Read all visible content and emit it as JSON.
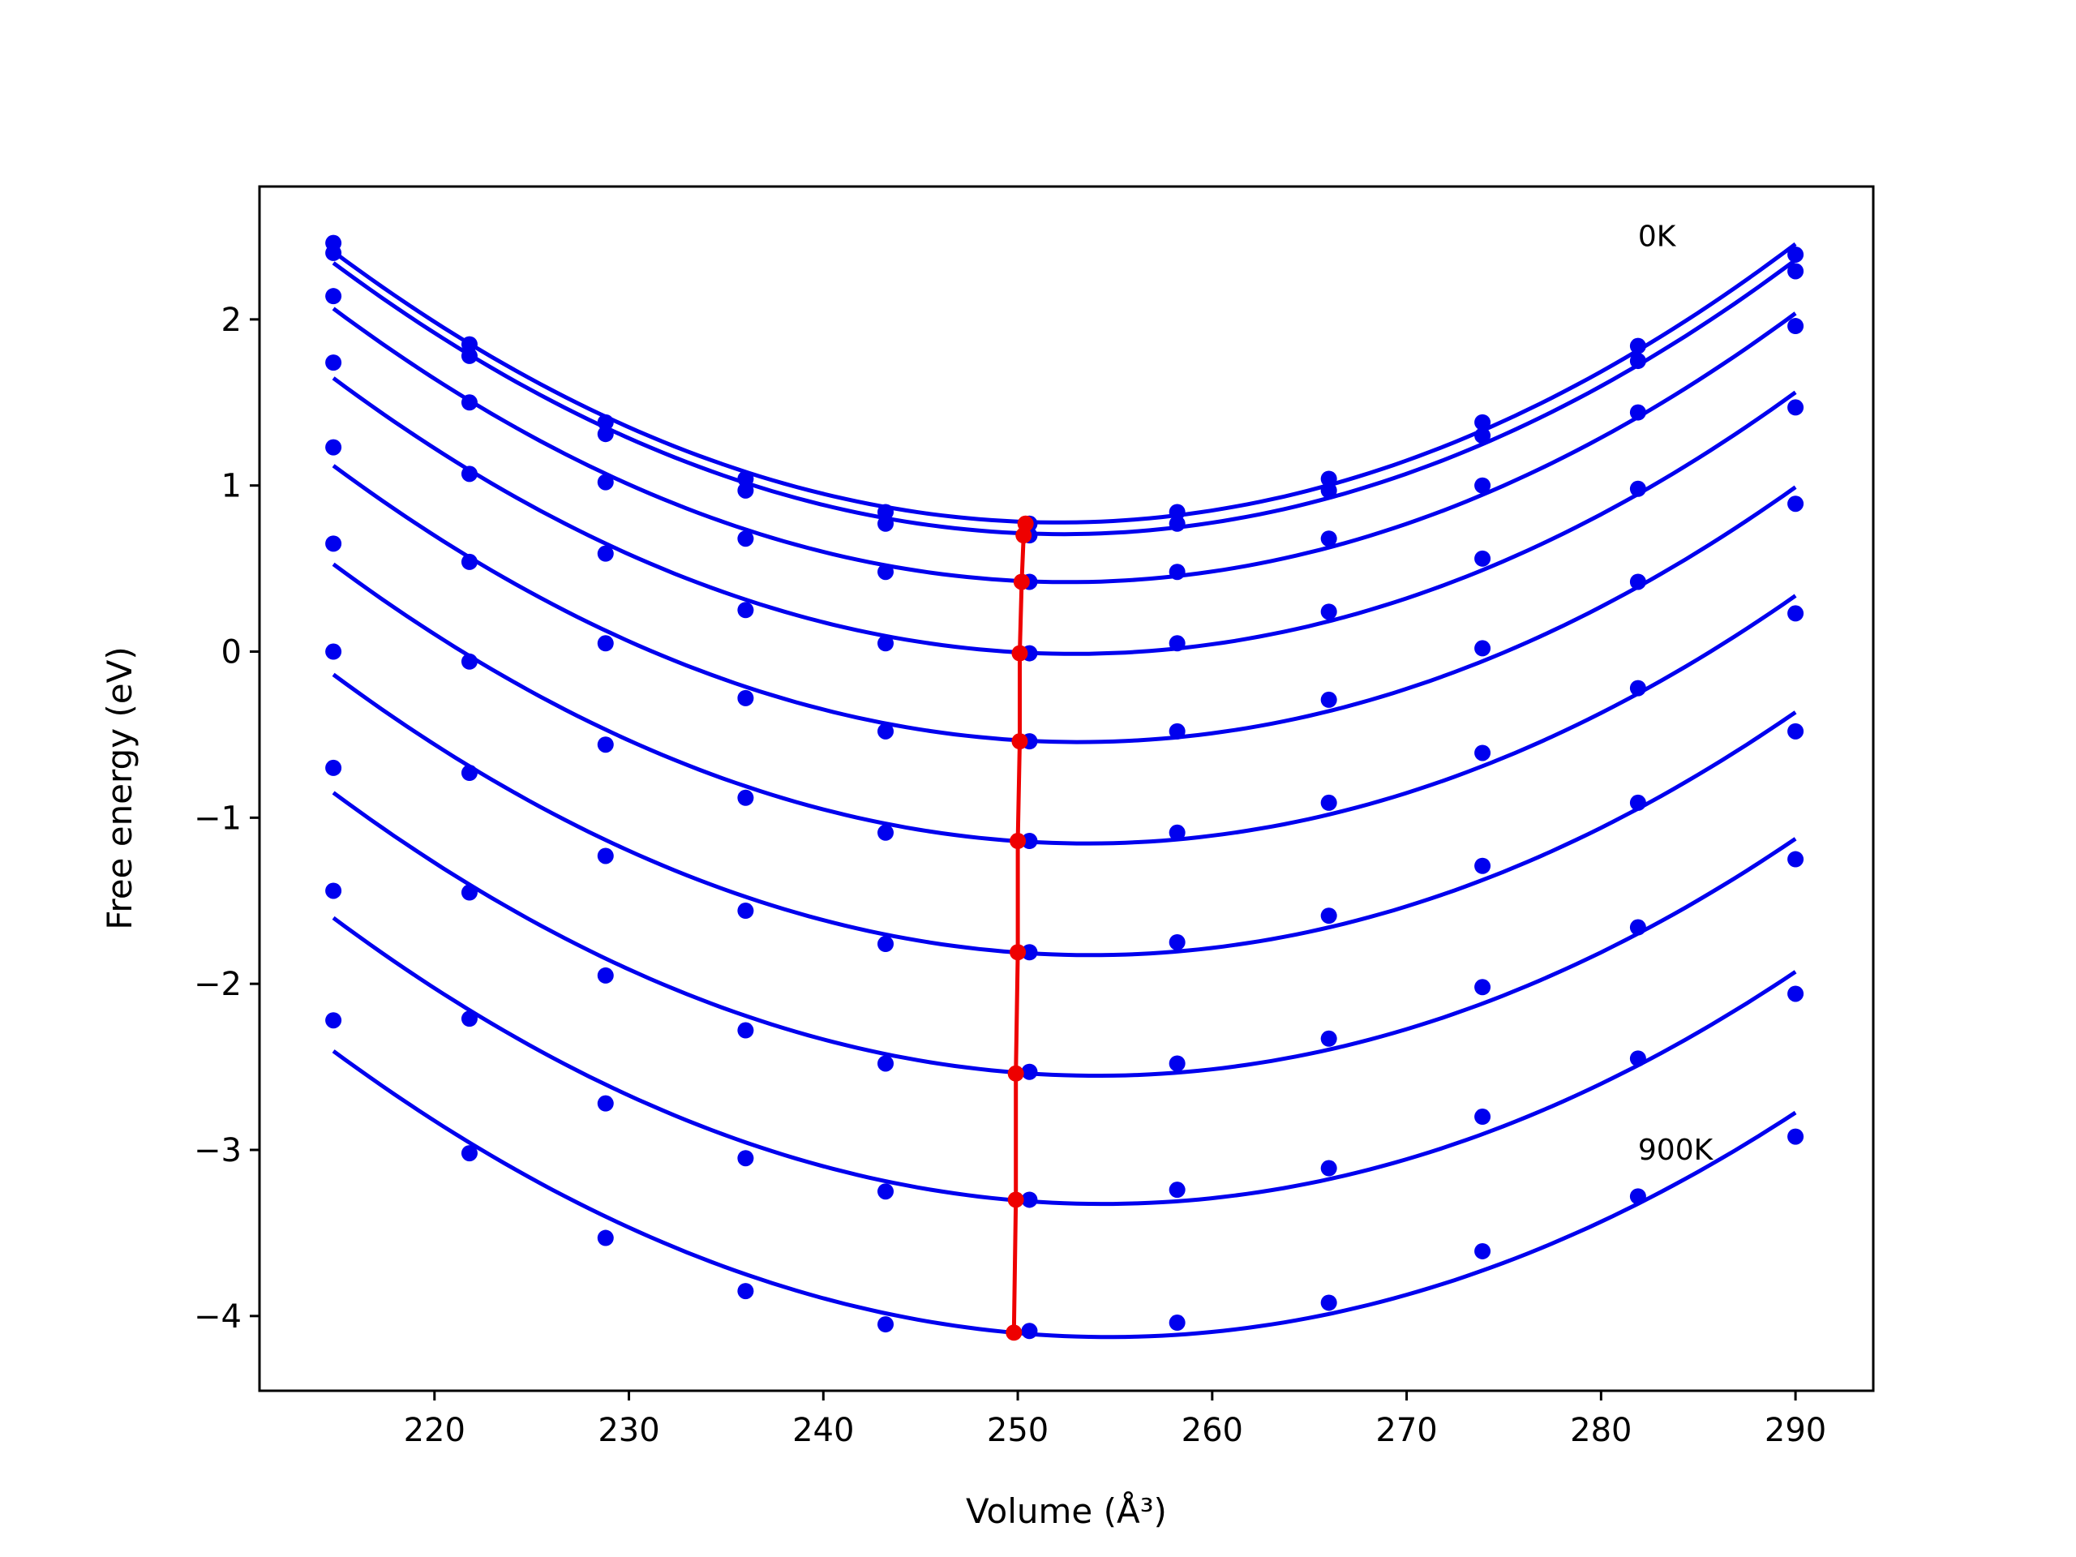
{
  "chart_data": {
    "type": "line",
    "xlabel": "Volume (Å³)",
    "ylabel": "Free energy (eV)",
    "xlim": [
      211,
      294
    ],
    "ylim": [
      -4.45,
      2.8
    ],
    "xticks": [
      220,
      230,
      240,
      250,
      260,
      270,
      280,
      290
    ],
    "xtick_labels": [
      "220",
      "230",
      "240",
      "250",
      "260",
      "270",
      "280",
      "290"
    ],
    "yticks": [
      -4,
      -3,
      -2,
      -1,
      0,
      1,
      2
    ],
    "ytick_labels": [
      "−4",
      "−3",
      "−2",
      "−1",
      "0",
      "1",
      "2"
    ],
    "grid": false,
    "annotations": [
      {
        "text": "0K",
        "x": 281.9,
        "y": 2.5
      },
      {
        "text": "900K",
        "x": 281.9,
        "y": -3.0
      }
    ],
    "x": [
      214.8,
      221.8,
      228.8,
      236.0,
      243.2,
      250.6,
      258.2,
      266.0,
      273.9,
      281.9,
      290.0
    ],
    "series": [
      {
        "color": "#0000ee",
        "values": [
          2.46,
          1.85,
          1.38,
          1.04,
          0.84,
          0.77,
          0.84,
          1.04,
          1.38,
          1.84,
          2.39
        ]
      },
      {
        "color": "#0000ee",
        "values": [
          2.4,
          1.78,
          1.31,
          0.97,
          0.77,
          0.7,
          0.77,
          0.97,
          1.3,
          1.75,
          2.29
        ]
      },
      {
        "color": "#0000ee",
        "values": [
          2.14,
          1.5,
          1.02,
          0.68,
          0.48,
          0.42,
          0.48,
          0.68,
          1.0,
          1.44,
          1.96
        ]
      },
      {
        "color": "#0000ee",
        "values": [
          1.74,
          1.07,
          0.59,
          0.25,
          0.05,
          -0.01,
          0.05,
          0.24,
          0.56,
          0.98,
          1.47
        ]
      },
      {
        "color": "#0000ee",
        "values": [
          1.23,
          0.54,
          0.05,
          -0.28,
          -0.48,
          -0.54,
          -0.48,
          -0.29,
          0.02,
          0.42,
          0.89
        ]
      },
      {
        "color": "#0000ee",
        "values": [
          0.65,
          -0.06,
          -0.56,
          -0.88,
          -1.09,
          -1.14,
          -1.09,
          -0.91,
          -0.61,
          -0.22,
          0.23
        ]
      },
      {
        "color": "#0000ee",
        "values": [
          0.0,
          -0.73,
          -1.23,
          -1.56,
          -1.76,
          -1.81,
          -1.75,
          -1.59,
          -1.29,
          -0.91,
          -0.48
        ]
      },
      {
        "color": "#0000ee",
        "values": [
          -0.7,
          -1.45,
          -1.95,
          -2.28,
          -2.48,
          -2.53,
          -2.48,
          -2.33,
          -2.02,
          -1.66,
          -1.25
        ]
      },
      {
        "color": "#0000ee",
        "values": [
          -1.44,
          -2.21,
          -2.72,
          -3.05,
          -3.25,
          -3.3,
          -3.24,
          -3.11,
          -2.8,
          -2.45,
          -2.06
        ]
      },
      {
        "color": "#0000ee",
        "values": [
          -2.22,
          -3.02,
          -3.53,
          -3.85,
          -4.05,
          -4.09,
          -4.04,
          -3.92,
          -3.61,
          -3.28,
          -2.92
        ]
      }
    ],
    "minima": {
      "color": "#ee0000",
      "x": [
        250.4,
        250.3,
        250.2,
        250.1,
        250.1,
        250.0,
        250.0,
        249.9,
        249.9,
        249.8
      ],
      "y": [
        0.77,
        0.7,
        0.42,
        -0.01,
        -0.54,
        -1.14,
        -1.81,
        -2.54,
        -3.3,
        -4.1
      ]
    }
  }
}
